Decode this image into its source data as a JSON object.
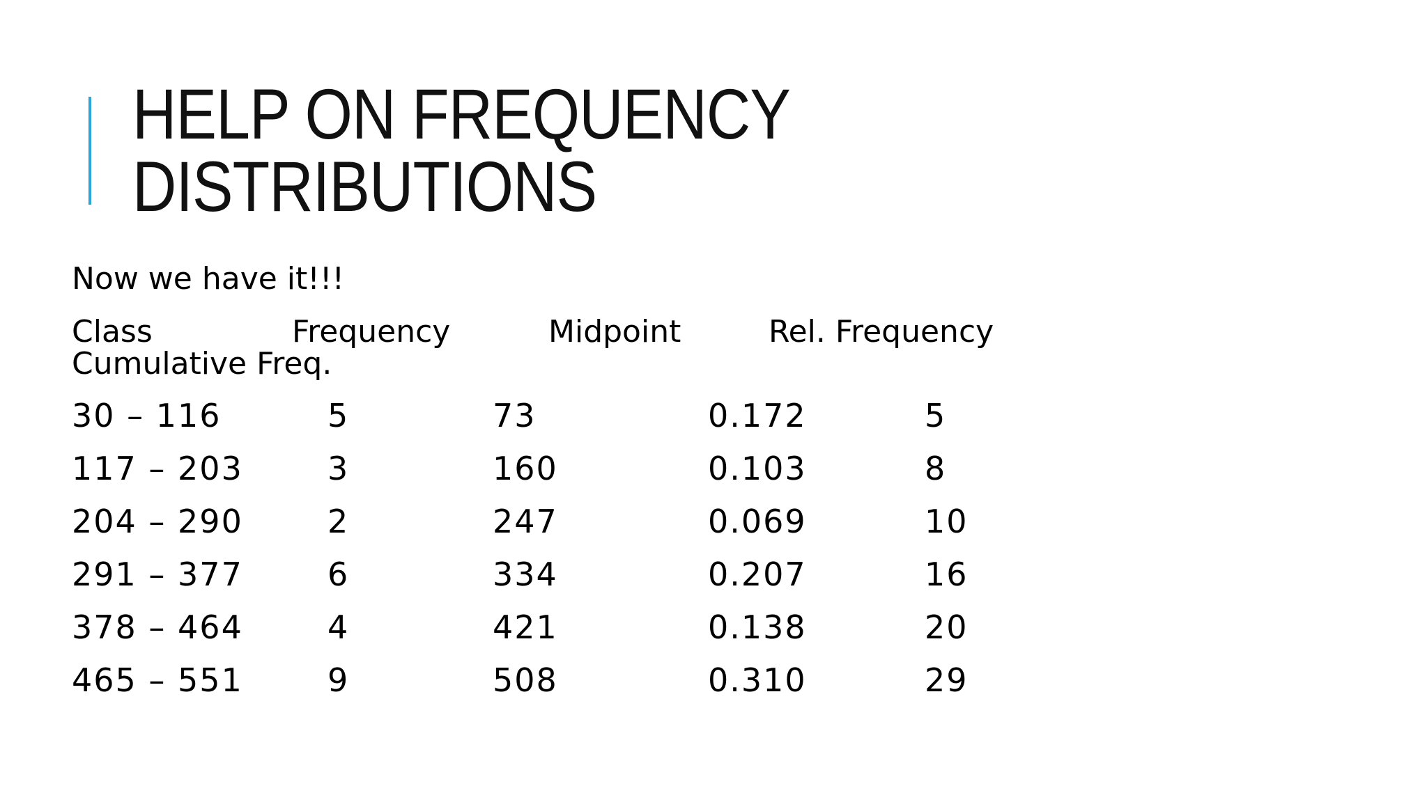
{
  "slide": {
    "title_line1": "HELP ON FREQUENCY",
    "title_line2": "DISTRIBUTIONS",
    "intro": "Now we have it!!!",
    "accent_color": "#2aa6d9"
  },
  "table": {
    "headers": {
      "class": "Class",
      "frequency": "Frequency",
      "midpoint": "Midpoint",
      "rel_frequency": "Rel. Frequency",
      "cumulative": "Cumulative Freq."
    },
    "rows": [
      {
        "class": "30 – 116",
        "frequency": "5",
        "midpoint": "73",
        "rel_frequency": "0.172",
        "cumulative": "5"
      },
      {
        "class": "117 – 203",
        "frequency": "3",
        "midpoint": "160",
        "rel_frequency": "0.103",
        "cumulative": "8"
      },
      {
        "class": "204 – 290",
        "frequency": "2",
        "midpoint": "247",
        "rel_frequency": "0.069",
        "cumulative": "10"
      },
      {
        "class": "291 – 377",
        "frequency": "6",
        "midpoint": "334",
        "rel_frequency": "0.207",
        "cumulative": "16"
      },
      {
        "class": "378 – 464",
        "frequency": "4",
        "midpoint": "421",
        "rel_frequency": "0.138",
        "cumulative": "20"
      },
      {
        "class": "465 – 551",
        "frequency": "9",
        "midpoint": "508",
        "rel_frequency": "0.310",
        "cumulative": "29"
      }
    ]
  }
}
